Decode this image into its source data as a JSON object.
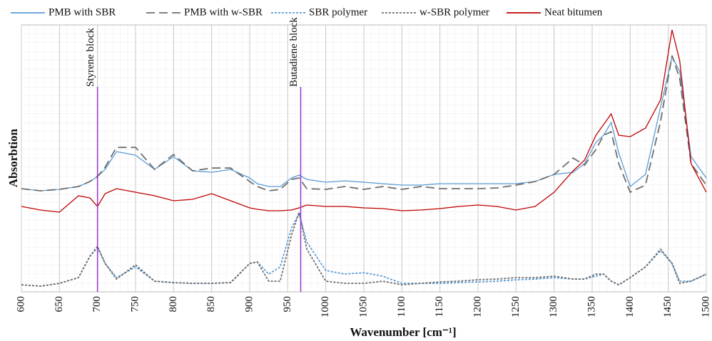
{
  "chart_data": {
    "type": "line",
    "y_label": "Absorbtion",
    "x_label": "Wavenumber [cm⁻¹]",
    "x": [
      600,
      625,
      650,
      675,
      690,
      700,
      710,
      725,
      750,
      775,
      800,
      825,
      850,
      875,
      900,
      910,
      925,
      940,
      955,
      965,
      975,
      1000,
      1025,
      1050,
      1075,
      1100,
      1125,
      1150,
      1175,
      1200,
      1225,
      1250,
      1275,
      1300,
      1325,
      1340,
      1355,
      1365,
      1375,
      1385,
      1400,
      1420,
      1440,
      1455,
      1465,
      1480,
      1500
    ],
    "series": [
      {
        "name": "PMB with SBR",
        "color": "#5b9bd5",
        "dash": "solid",
        "values": [
          145,
          142,
          144,
          148,
          155,
          162,
          172,
          197,
          192,
          172,
          190,
          170,
          168,
          172,
          160,
          152,
          148,
          148,
          160,
          164,
          158,
          154,
          156,
          154,
          152,
          150,
          150,
          152,
          152,
          152,
          152,
          152,
          155,
          165,
          168,
          180,
          210,
          220,
          238,
          195,
          148,
          165,
          260,
          330,
          310,
          190,
          160
        ]
      },
      {
        "name": "PMB with w-SBR",
        "color": "#6e6e6e",
        "dash": "longdash",
        "values": [
          145,
          142,
          144,
          148,
          155,
          162,
          175,
          203,
          203,
          172,
          193,
          170,
          174,
          174,
          155,
          148,
          142,
          144,
          158,
          160,
          145,
          144,
          148,
          144,
          148,
          144,
          148,
          145,
          145,
          145,
          146,
          150,
          155,
          165,
          188,
          178,
          200,
          220,
          225,
          180,
          140,
          150,
          240,
          332,
          300,
          180,
          150
        ]
      },
      {
        "name": "SBR polymer",
        "color": "#5b9bd5",
        "dash": "dotted",
        "values": [
          10,
          8,
          12,
          20,
          50,
          62,
          40,
          20,
          35,
          15,
          13,
          12,
          12,
          13,
          40,
          42,
          25,
          35,
          90,
          110,
          70,
          30,
          25,
          27,
          22,
          12,
          12,
          12,
          13,
          14,
          15,
          17,
          18,
          20,
          18,
          18,
          22,
          25,
          15,
          10,
          20,
          35,
          58,
          40,
          15,
          15,
          25
        ]
      },
      {
        "name": "w-SBR polymer",
        "color": "#6e6e6e",
        "dash": "dotted",
        "values": [
          10,
          8,
          12,
          20,
          50,
          64,
          40,
          18,
          38,
          15,
          13,
          12,
          12,
          13,
          40,
          42,
          15,
          15,
          80,
          112,
          60,
          15,
          12,
          12,
          15,
          10,
          12,
          14,
          15,
          17,
          18,
          20,
          20,
          22,
          18,
          18,
          25,
          25,
          15,
          10,
          20,
          35,
          60,
          40,
          12,
          15,
          25
        ]
      },
      {
        "name": "Neat bitumen",
        "color": "#c00000",
        "dash": "solid",
        "values": [
          120,
          115,
          112,
          135,
          132,
          120,
          138,
          145,
          140,
          135,
          128,
          130,
          138,
          128,
          118,
          116,
          114,
          114,
          115,
          118,
          122,
          120,
          120,
          118,
          117,
          114,
          115,
          117,
          120,
          122,
          120,
          115,
          120,
          140,
          170,
          185,
          220,
          235,
          250,
          220,
          218,
          230,
          270,
          368,
          325,
          180,
          140
        ]
      }
    ],
    "annotations": [
      {
        "text": "Styrene block",
        "x": 700,
        "color": "#9933cc"
      },
      {
        "text": "Butadiene block",
        "x": 967,
        "color": "#9933cc"
      }
    ],
    "xlim": [
      600,
      1500
    ],
    "xticks": [
      600,
      650,
      700,
      750,
      800,
      850,
      900,
      950,
      1000,
      1050,
      1100,
      1150,
      1200,
      1250,
      1300,
      1350,
      1400,
      1450,
      1500
    ],
    "ylim": [
      0,
      375
    ],
    "grid": true
  }
}
